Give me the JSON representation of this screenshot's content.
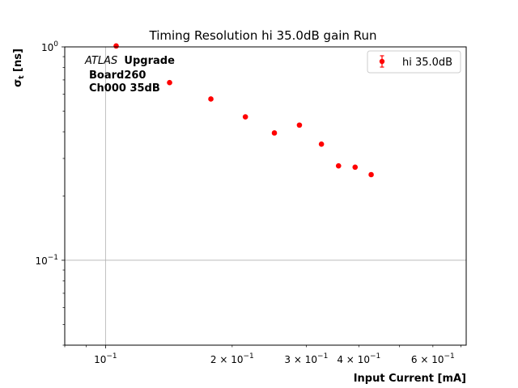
{
  "chart_data": {
    "type": "scatter",
    "title": "Timing Resolution hi 35.0dB gain Run",
    "xlabel": "Input Current [mA]",
    "ylabel": "σt [ns]",
    "xscale": "log",
    "yscale": "log",
    "xlim": [
      0.08,
      0.72
    ],
    "ylim": [
      0.04,
      1.0
    ],
    "x_ticks": [
      {
        "value": 0.1,
        "base": "10",
        "exp": "−1",
        "mantissa": ""
      },
      {
        "value": 0.2,
        "base": "10",
        "exp": "−1",
        "mantissa": "2 × "
      },
      {
        "value": 0.3,
        "base": "10",
        "exp": "−1",
        "mantissa": "3 × "
      },
      {
        "value": 0.4,
        "base": "10",
        "exp": "−1",
        "mantissa": "4 × "
      },
      {
        "value": 0.6,
        "base": "10",
        "exp": "−1",
        "mantissa": "6 × "
      }
    ],
    "y_ticks": [
      {
        "value": 0.1,
        "base": "10",
        "exp": "−1"
      },
      {
        "value": 1.0,
        "base": "10",
        "exp": "0"
      }
    ],
    "grid": "major",
    "legend_position": "top-right",
    "series": [
      {
        "name": "hi 35.0dB",
        "color": "#ff0000",
        "x": [
          0.106,
          0.142,
          0.178,
          0.215,
          0.252,
          0.289,
          0.326,
          0.358,
          0.392,
          0.428
        ],
        "y": [
          1.01,
          0.68,
          0.57,
          0.47,
          0.395,
          0.43,
          0.35,
          0.277,
          0.273,
          0.252
        ]
      }
    ],
    "annotation": {
      "atlas_italic": "ATLAS",
      "upgrade": "Upgrade",
      "line2": "Board260",
      "line3": "Ch000 35dB"
    }
  }
}
